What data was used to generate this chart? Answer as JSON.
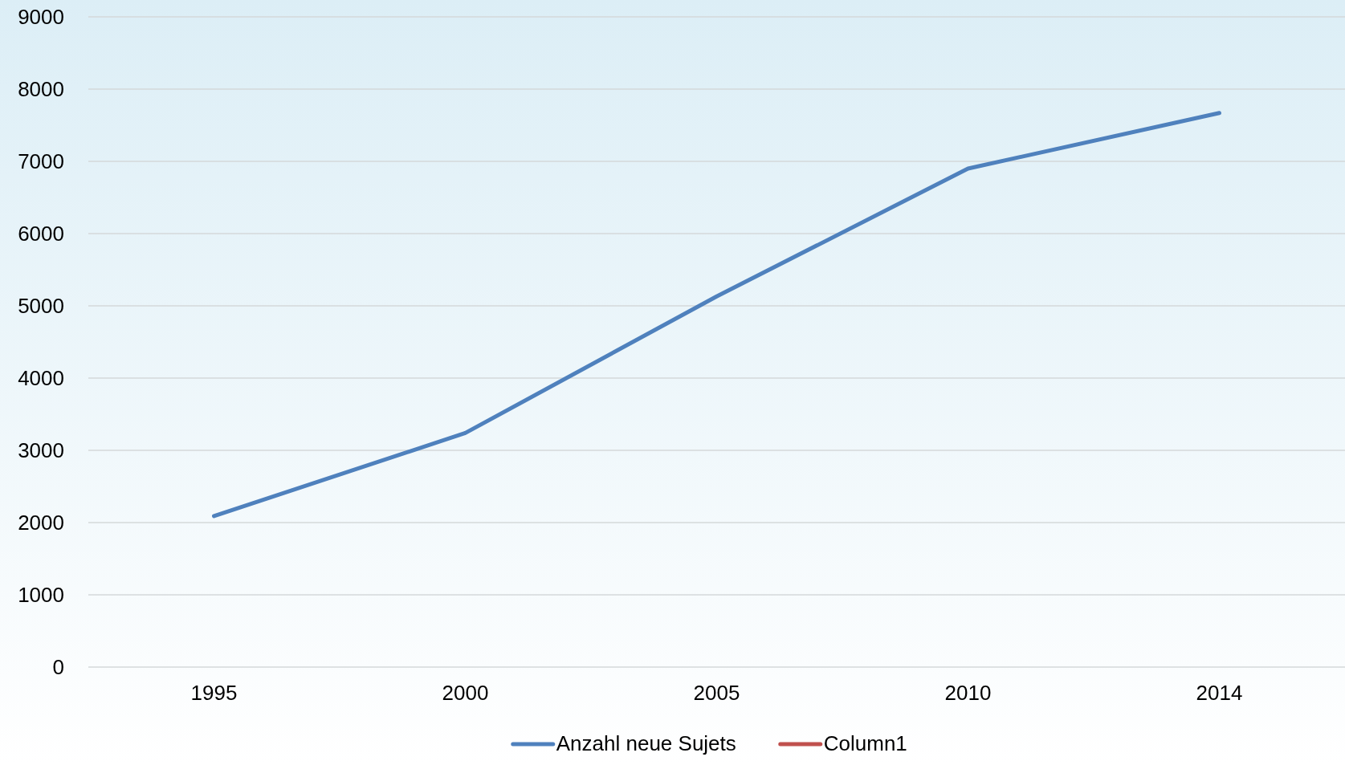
{
  "chart_data": {
    "type": "line",
    "categories": [
      "1995",
      "2000",
      "2005",
      "2010",
      "2014"
    ],
    "series": [
      {
        "name": "Anzahl neue Sujets",
        "color": "#4f81bd",
        "values": [
          2090,
          3240,
          5130,
          6900,
          7670
        ]
      },
      {
        "name": "Column1",
        "color": "#c0504d",
        "values": [
          null,
          null,
          null,
          null,
          null
        ]
      }
    ],
    "ylim": [
      0,
      9000
    ],
    "yticks": [
      0,
      1000,
      2000,
      3000,
      4000,
      5000,
      6000,
      7000,
      8000,
      9000
    ],
    "grid": "y",
    "legend": "bottom",
    "marker": "none",
    "line_style": "solid"
  }
}
